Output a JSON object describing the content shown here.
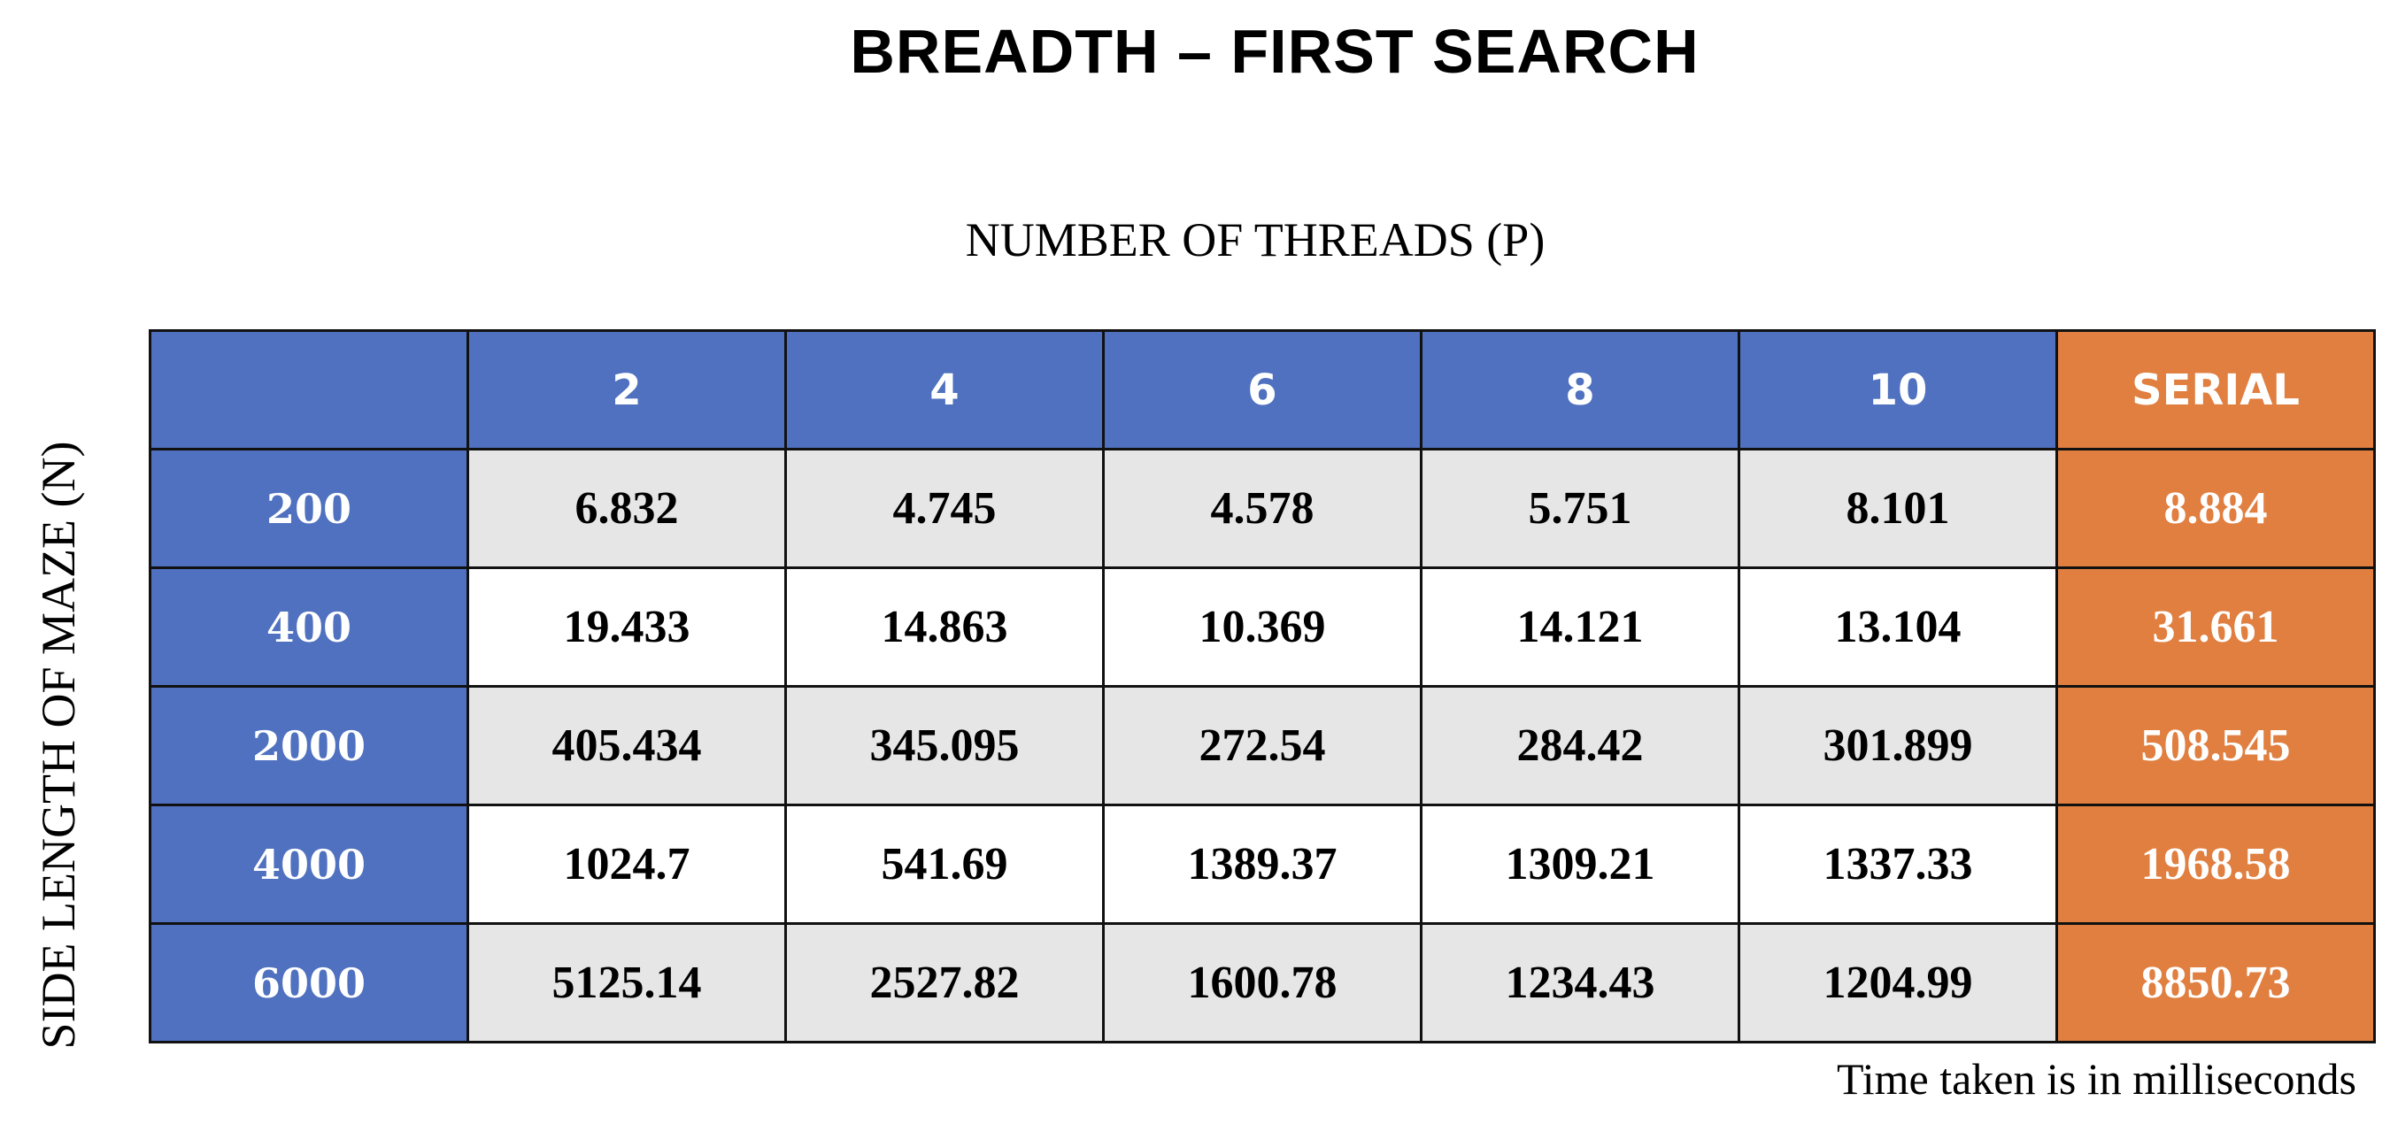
{
  "chart_data": {
    "type": "table",
    "title": "BREADTH – FIRST SEARCH",
    "column_axis_label": "NUMBER OF THREADS (P)",
    "row_axis_label": "SIDE LENGTH OF MAZE (N)",
    "columns": [
      "2",
      "4",
      "6",
      "8",
      "10",
      "SERIAL"
    ],
    "rows": [
      {
        "label": "200",
        "values": [
          "6.832",
          "4.745",
          "4.578",
          "5.751",
          "8.101",
          "8.884"
        ]
      },
      {
        "label": "400",
        "values": [
          "19.433",
          "14.863",
          "10.369",
          "14.121",
          "13.104",
          "31.661"
        ]
      },
      {
        "label": "2000",
        "values": [
          "405.434",
          "345.095",
          "272.54",
          "284.42",
          "301.899",
          "508.545"
        ]
      },
      {
        "label": "4000",
        "values": [
          "1024.7",
          "541.69",
          "1389.37",
          "1309.21",
          "1337.33",
          "1968.58"
        ]
      },
      {
        "label": "6000",
        "values": [
          "5125.14",
          "2527.82",
          "1600.78",
          "1234.43",
          "1204.99",
          "8850.73"
        ]
      }
    ],
    "note": "Time taken is in milliseconds",
    "colors": {
      "header": "#4f71bf",
      "serial": "#e07f40",
      "shaded_row": "#e6e6e6",
      "plain_row": "#ffffff"
    }
  }
}
